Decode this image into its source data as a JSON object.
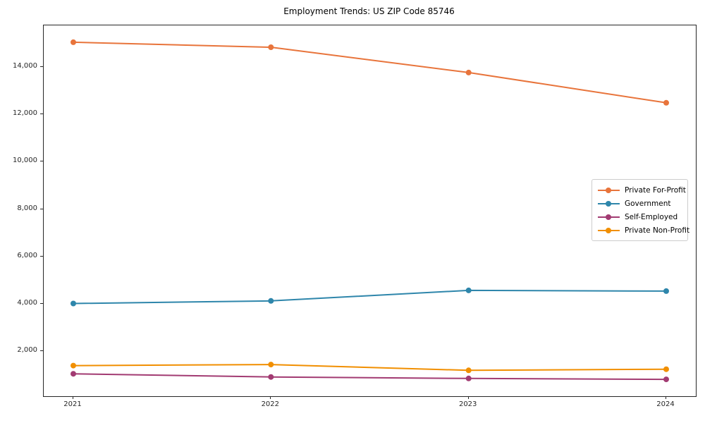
{
  "title": "Employment Trends: US ZIP Code 85746",
  "chart_data": {
    "type": "line",
    "x": [
      2021,
      2022,
      2023,
      2024
    ],
    "x_tick_labels": [
      "2021",
      "2022",
      "2023",
      "2024"
    ],
    "series": [
      {
        "name": "Private For-Profit",
        "color": "#E8743B",
        "values": [
          15050,
          14840,
          13770,
          12490
        ]
      },
      {
        "name": "Government",
        "color": "#2E86AB",
        "values": [
          4010,
          4120,
          4565,
          4535
        ]
      },
      {
        "name": "Self-Employed",
        "color": "#A23B72",
        "values": [
          1040,
          905,
          845,
          805
        ]
      },
      {
        "name": "Private Non-Profit",
        "color": "#F18F01",
        "values": [
          1385,
          1430,
          1185,
          1235
        ]
      }
    ],
    "yticks": [
      2000,
      4000,
      6000,
      8000,
      10000,
      12000,
      14000
    ],
    "ytick_labels": [
      "2,000",
      "4,000",
      "6,000",
      "8,000",
      "10,000",
      "12,000",
      "14,000"
    ],
    "ylim": [
      93,
      15762
    ],
    "xlim": [
      2020.85,
      2024.15
    ],
    "grid": false,
    "legend_position": "center right",
    "marker": "circle",
    "title": "Employment Trends: US ZIP Code 85746",
    "xlabel": "",
    "ylabel": ""
  }
}
